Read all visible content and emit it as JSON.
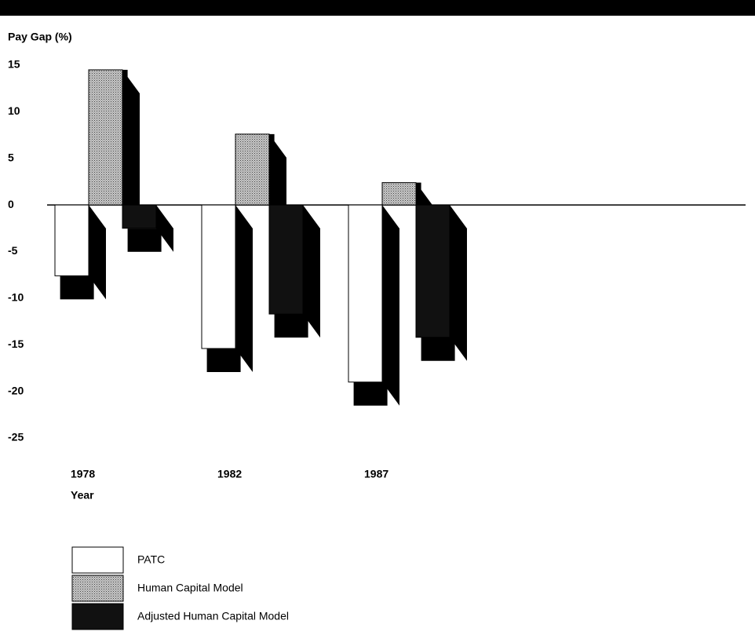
{
  "chart_data": {
    "type": "bar3d",
    "y_label": "Pay Gap (%)",
    "x_label": "Year",
    "categories": [
      "1978",
      "1982",
      "1987"
    ],
    "series": [
      {
        "name": "PATC",
        "color": "#ffffff",
        "values": [
          -7.6,
          -15.4,
          -19
        ]
      },
      {
        "name": "Human Capital Model",
        "color": "#a8a8a8",
        "values": [
          14.5,
          7.6,
          2.4
        ]
      },
      {
        "name": "Adjusted Human Capital Model",
        "color": "#111111",
        "values": [
          -2.5,
          -11.7,
          -14.2
        ]
      }
    ],
    "ylim": [
      -25,
      15
    ],
    "yticks": [
      15,
      10,
      5,
      0,
      -5,
      -10,
      -15,
      -20,
      -25
    ]
  }
}
